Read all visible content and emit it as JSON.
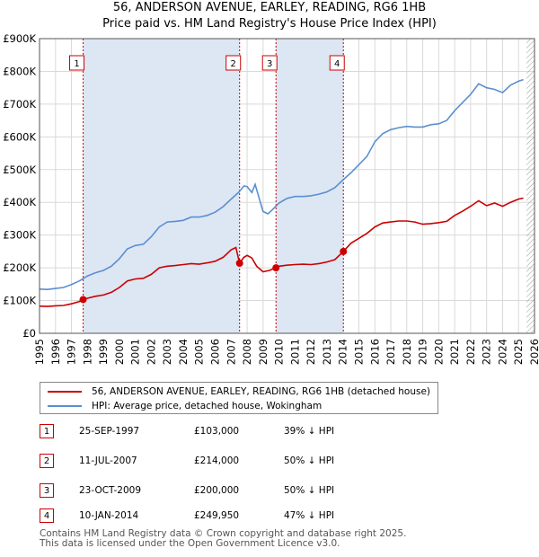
{
  "chart_data": {
    "type": "line",
    "title": "56, ANDERSON AVENUE, EARLEY, READING, RG6 1HB",
    "subtitle": "Price paid vs. HM Land Registry's House Price Index (HPI)",
    "xlabel": "",
    "ylabel": "",
    "xlim": [
      1995,
      2026
    ],
    "ylim": [
      0,
      900000
    ],
    "grid": true,
    "y_ticks": [
      {
        "value": 0,
        "label": "£0"
      },
      {
        "value": 100000,
        "label": "£100K"
      },
      {
        "value": 200000,
        "label": "£200K"
      },
      {
        "value": 300000,
        "label": "£300K"
      },
      {
        "value": 400000,
        "label": "£400K"
      },
      {
        "value": 500000,
        "label": "£500K"
      },
      {
        "value": 600000,
        "label": "£600K"
      },
      {
        "value": 700000,
        "label": "£700K"
      },
      {
        "value": 800000,
        "label": "£800K"
      },
      {
        "value": 900000,
        "label": "£900K"
      }
    ],
    "x_ticks": [
      "1995",
      "1996",
      "1997",
      "1998",
      "1999",
      "2000",
      "2001",
      "2002",
      "2003",
      "2004",
      "2005",
      "2006",
      "2007",
      "2008",
      "2009",
      "2010",
      "2011",
      "2012",
      "2013",
      "2014",
      "2015",
      "2016",
      "2017",
      "2018",
      "2019",
      "2020",
      "2021",
      "2022",
      "2023",
      "2024",
      "2025",
      "2026"
    ],
    "series": [
      {
        "name": "56, ANDERSON AVENUE, EARLEY, READING, RG6 1HB (detached house)",
        "color": "#cc0000",
        "points": [
          [
            1995.0,
            83000
          ],
          [
            1995.5,
            82000
          ],
          [
            1996.0,
            84000
          ],
          [
            1996.5,
            85000
          ],
          [
            1997.0,
            90000
          ],
          [
            1997.5,
            97000
          ],
          [
            1997.73,
            103000
          ],
          [
            1998.0,
            107000
          ],
          [
            1998.5,
            113000
          ],
          [
            1999.0,
            117000
          ],
          [
            1999.5,
            125000
          ],
          [
            2000.0,
            140000
          ],
          [
            2000.5,
            160000
          ],
          [
            2001.0,
            166000
          ],
          [
            2001.5,
            168000
          ],
          [
            2002.0,
            180000
          ],
          [
            2002.5,
            200000
          ],
          [
            2003.0,
            205000
          ],
          [
            2003.5,
            207000
          ],
          [
            2004.0,
            210000
          ],
          [
            2004.5,
            213000
          ],
          [
            2005.0,
            211000
          ],
          [
            2005.5,
            215000
          ],
          [
            2006.0,
            220000
          ],
          [
            2006.5,
            232000
          ],
          [
            2007.0,
            255000
          ],
          [
            2007.3,
            262000
          ],
          [
            2007.53,
            214000
          ],
          [
            2007.8,
            232000
          ],
          [
            2008.0,
            238000
          ],
          [
            2008.3,
            230000
          ],
          [
            2008.6,
            205000
          ],
          [
            2009.0,
            188000
          ],
          [
            2009.4,
            192000
          ],
          [
            2009.81,
            200000
          ],
          [
            2010.0,
            205000
          ],
          [
            2010.5,
            208000
          ],
          [
            2011.0,
            210000
          ],
          [
            2011.5,
            211000
          ],
          [
            2012.0,
            210000
          ],
          [
            2012.5,
            213000
          ],
          [
            2013.0,
            218000
          ],
          [
            2013.5,
            225000
          ],
          [
            2014.03,
            249950
          ],
          [
            2014.5,
            275000
          ],
          [
            2015.0,
            290000
          ],
          [
            2015.5,
            305000
          ],
          [
            2016.0,
            325000
          ],
          [
            2016.5,
            337000
          ],
          [
            2017.0,
            340000
          ],
          [
            2017.5,
            343000
          ],
          [
            2018.0,
            343000
          ],
          [
            2018.5,
            340000
          ],
          [
            2019.0,
            333000
          ],
          [
            2019.5,
            335000
          ],
          [
            2020.0,
            338000
          ],
          [
            2020.5,
            342000
          ],
          [
            2021.0,
            360000
          ],
          [
            2021.5,
            373000
          ],
          [
            2022.0,
            388000
          ],
          [
            2022.5,
            405000
          ],
          [
            2023.0,
            390000
          ],
          [
            2023.5,
            398000
          ],
          [
            2024.0,
            388000
          ],
          [
            2024.5,
            400000
          ],
          [
            2025.0,
            410000
          ],
          [
            2025.3,
            413000
          ]
        ]
      },
      {
        "name": "HPI: Average price, detached house, Wokingham",
        "color": "#5a8fd0",
        "points": [
          [
            1995.0,
            135000
          ],
          [
            1995.5,
            134000
          ],
          [
            1996.0,
            137000
          ],
          [
            1996.5,
            140000
          ],
          [
            1997.0,
            149000
          ],
          [
            1997.5,
            160000
          ],
          [
            1998.0,
            175000
          ],
          [
            1998.5,
            185000
          ],
          [
            1999.0,
            192000
          ],
          [
            1999.5,
            205000
          ],
          [
            2000.0,
            228000
          ],
          [
            2000.5,
            258000
          ],
          [
            2001.0,
            268000
          ],
          [
            2001.5,
            272000
          ],
          [
            2002.0,
            295000
          ],
          [
            2002.5,
            325000
          ],
          [
            2003.0,
            340000
          ],
          [
            2003.5,
            342000
          ],
          [
            2004.0,
            345000
          ],
          [
            2004.5,
            355000
          ],
          [
            2005.0,
            355000
          ],
          [
            2005.5,
            360000
          ],
          [
            2006.0,
            370000
          ],
          [
            2006.5,
            387000
          ],
          [
            2007.0,
            410000
          ],
          [
            2007.5,
            432000
          ],
          [
            2007.8,
            450000
          ],
          [
            2008.0,
            448000
          ],
          [
            2008.3,
            430000
          ],
          [
            2008.5,
            455000
          ],
          [
            2008.8,
            405000
          ],
          [
            2009.0,
            372000
          ],
          [
            2009.3,
            365000
          ],
          [
            2009.6,
            378000
          ],
          [
            2010.0,
            398000
          ],
          [
            2010.5,
            412000
          ],
          [
            2011.0,
            418000
          ],
          [
            2011.5,
            418000
          ],
          [
            2012.0,
            420000
          ],
          [
            2012.5,
            425000
          ],
          [
            2013.0,
            432000
          ],
          [
            2013.5,
            445000
          ],
          [
            2014.0,
            468000
          ],
          [
            2014.5,
            490000
          ],
          [
            2015.0,
            515000
          ],
          [
            2015.5,
            540000
          ],
          [
            2016.0,
            585000
          ],
          [
            2016.5,
            610000
          ],
          [
            2017.0,
            622000
          ],
          [
            2017.5,
            628000
          ],
          [
            2018.0,
            632000
          ],
          [
            2018.5,
            630000
          ],
          [
            2019.0,
            630000
          ],
          [
            2019.5,
            637000
          ],
          [
            2020.0,
            640000
          ],
          [
            2020.5,
            650000
          ],
          [
            2021.0,
            680000
          ],
          [
            2021.5,
            705000
          ],
          [
            2022.0,
            730000
          ],
          [
            2022.5,
            762000
          ],
          [
            2023.0,
            750000
          ],
          [
            2023.5,
            745000
          ],
          [
            2024.0,
            735000
          ],
          [
            2024.5,
            758000
          ],
          [
            2025.0,
            770000
          ],
          [
            2025.3,
            775000
          ]
        ]
      }
    ],
    "transactions": [
      {
        "num": "1",
        "x": 1997.73,
        "price_value": 103000,
        "date": "25-SEP-1997",
        "price": "£103,000",
        "hpi": "39% ↓ HPI"
      },
      {
        "num": "2",
        "x": 2007.53,
        "price_value": 214000,
        "date": "11-JUL-2007",
        "price": "£214,000",
        "hpi": "50% ↓ HPI"
      },
      {
        "num": "3",
        "x": 2009.81,
        "price_value": 200000,
        "date": "23-OCT-2009",
        "price": "£200,000",
        "hpi": "50% ↓ HPI"
      },
      {
        "num": "4",
        "x": 2014.03,
        "price_value": 249950,
        "date": "10-JAN-2014",
        "price": "£249,950",
        "hpi": "47% ↓ HPI"
      }
    ],
    "future_hatch_start": 2025.5
  },
  "colors": {
    "price_line": "#cc0000",
    "hpi_line": "#5a8fd0",
    "shade": "#dde6f3",
    "marker_border": "#cc0000",
    "vline": "#cc0000",
    "grid": "#d9d9d9"
  },
  "legend": {
    "price_label": "56, ANDERSON AVENUE, EARLEY, READING, RG6 1HB (detached house)",
    "hpi_label": "HPI: Average price, detached house, Wokingham"
  },
  "footer": {
    "line1": "Contains HM Land Registry data © Crown copyright and database right 2025.",
    "line2": "This data is licensed under the Open Government Licence v3.0."
  }
}
